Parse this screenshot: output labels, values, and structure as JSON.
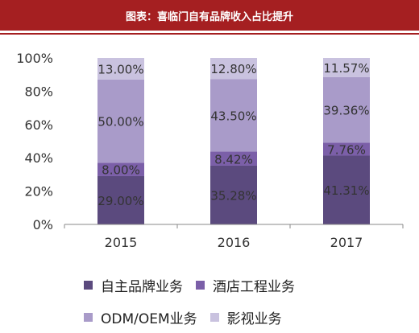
{
  "header": {
    "title": "图表：喜临门自有品牌收入占比提升"
  },
  "chart_data": {
    "type": "bar",
    "stacked": true,
    "categories": [
      "2015",
      "2016",
      "2017"
    ],
    "series": [
      {
        "name": "自主品牌业务",
        "values": [
          29.0,
          35.28,
          41.31
        ],
        "labels": [
          "29.00%",
          "35.28%",
          "41.31%"
        ],
        "color": "#5b4a7e"
      },
      {
        "name": "酒店工程业务",
        "values": [
          8.0,
          8.42,
          7.76
        ],
        "labels": [
          "8.00%",
          "8.42%",
          "7.76%"
        ],
        "color": "#7b5fa8"
      },
      {
        "name": "ODM/OEM业务",
        "values": [
          50.0,
          43.5,
          39.36
        ],
        "labels": [
          "50.00%",
          "43.50%",
          "39.36%"
        ],
        "color": "#a99bc9"
      },
      {
        "name": "影视业务",
        "values": [
          13.0,
          12.8,
          11.57
        ],
        "labels": [
          "13.00%",
          "12.80%",
          "11.57%"
        ],
        "color": "#c9c2df"
      }
    ],
    "yticks": [
      "0%",
      "20%",
      "40%",
      "60%",
      "80%",
      "100%"
    ],
    "ylim": [
      0,
      100
    ],
    "grid": false,
    "legend_position": "bottom"
  }
}
